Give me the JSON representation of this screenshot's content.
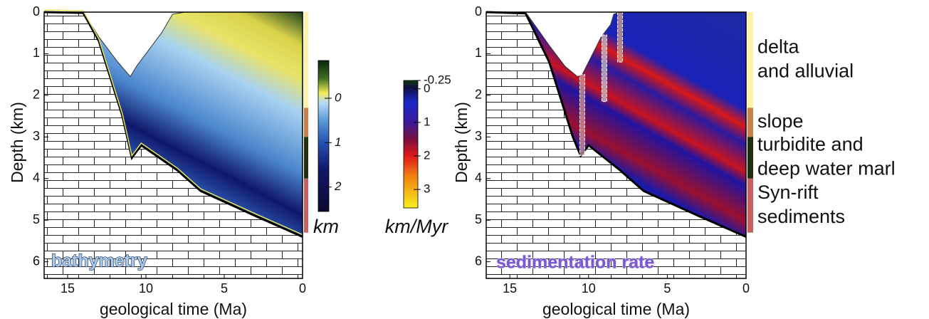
{
  "chart_data": [
    {
      "type": "area",
      "annotation": "bathymetry",
      "xlabel": "geological time (Ma)",
      "ylabel": "Depth (km)",
      "xlim": [
        16.5,
        0
      ],
      "ylim": [
        0,
        6.4
      ],
      "y_inverted": true,
      "xticks": [
        15,
        10,
        5,
        0
      ],
      "yticks": [
        0,
        1,
        2,
        3,
        4,
        5,
        6
      ],
      "series": [
        {
          "color": "#000000",
          "x": [
            16.5,
            14,
            13,
            11.5,
            10.9,
            10.3,
            8,
            6.5,
            3,
            0
          ],
          "values": [
            0,
            0.02,
            0.7,
            2.5,
            3.5,
            3.2,
            3.8,
            4.3,
            4.9,
            5.4
          ]
        },
        {
          "color": "#333333",
          "x": [
            14,
            13,
            11.8,
            11,
            10.6,
            10,
            9,
            8.3,
            7.5,
            0
          ],
          "values": [
            0,
            0.6,
            1.2,
            1.55,
            1.3,
            1.0,
            0.5,
            0.05,
            0,
            0
          ]
        }
      ],
      "colorbar": {
        "label": "km",
        "lim": [
          -0.85,
          2.55
        ],
        "ticks": [
          0,
          1,
          2
        ],
        "stops": [
          [
            -0.85,
            "#0b260b"
          ],
          [
            -0.45,
            "#3f6e22"
          ],
          [
            -0.12,
            "#f2ec55"
          ],
          [
            0.1,
            "#b6dcf4"
          ],
          [
            0.5,
            "#5b9ad8"
          ],
          [
            1.0,
            "#2450b0"
          ],
          [
            1.6,
            "#14186c"
          ],
          [
            2.55,
            "#0a0a30"
          ]
        ]
      }
    },
    {
      "type": "area",
      "annotation": "sedimentation rate",
      "xlabel": "geological time (Ma)",
      "ylabel": "Depth (km)",
      "xlim": [
        16.5,
        0
      ],
      "ylim": [
        0,
        6.4
      ],
      "y_inverted": true,
      "xticks": [
        15,
        10,
        5,
        0
      ],
      "yticks": [
        0,
        1,
        2,
        3,
        4,
        5,
        6
      ],
      "series": [
        {
          "color": "#000000",
          "x": [
            16.5,
            14,
            12.5,
            11,
            10.5,
            10,
            8,
            6.5,
            3,
            0
          ],
          "values": [
            0,
            0.03,
            1.2,
            3.0,
            3.45,
            3.2,
            3.8,
            4.3,
            4.9,
            5.4
          ]
        },
        {
          "color": "#333333",
          "x": [
            14,
            12.5,
            11.5,
            10.7,
            10.4,
            10,
            9.2,
            8.6,
            8.4,
            8,
            0
          ],
          "values": [
            0,
            0.8,
            1.3,
            1.55,
            1.5,
            1.2,
            0.6,
            0.3,
            0.05,
            0,
            0
          ]
        }
      ],
      "wells": [
        {
          "x": 10.4,
          "top": 1.5,
          "bottom": 3.45,
          "color": "#d8a0a0"
        },
        {
          "x": 9.0,
          "top": 0.55,
          "bottom": 2.15,
          "color": "#d0d0d0"
        },
        {
          "x": 8.0,
          "top": 0,
          "bottom": 1.2,
          "color": "#e0b090"
        }
      ],
      "colorbar": {
        "label": "km/Myr",
        "lim": [
          -0.25,
          3.55
        ],
        "ticks": [
          -0.25,
          0,
          1,
          2,
          3
        ],
        "stops": [
          [
            -0.25,
            "#0c3a0c"
          ],
          [
            -0.05,
            "#101040"
          ],
          [
            0.4,
            "#1a28c8"
          ],
          [
            1.0,
            "#3a1a9a"
          ],
          [
            1.5,
            "#7a1040"
          ],
          [
            2.0,
            "#e01818"
          ],
          [
            2.6,
            "#f08010"
          ],
          [
            3.55,
            "#f8f020"
          ]
        ]
      },
      "facies": [
        {
          "label": [
            "delta",
            "and alluvial"
          ],
          "color": "#fff2a8",
          "top": 0,
          "bottom": 2.3
        },
        {
          "label": [
            "slope"
          ],
          "color": "#c88048",
          "top": 2.3,
          "bottom": 3.0
        },
        {
          "label": [
            "turbidite and",
            "deep water marl"
          ],
          "color": "#1e3010",
          "top": 3.0,
          "bottom": 4.0
        },
        {
          "label": [
            "Syn-rift",
            "sediments"
          ],
          "color": "#c86060",
          "top": 4.0,
          "bottom": 5.3
        }
      ]
    }
  ]
}
